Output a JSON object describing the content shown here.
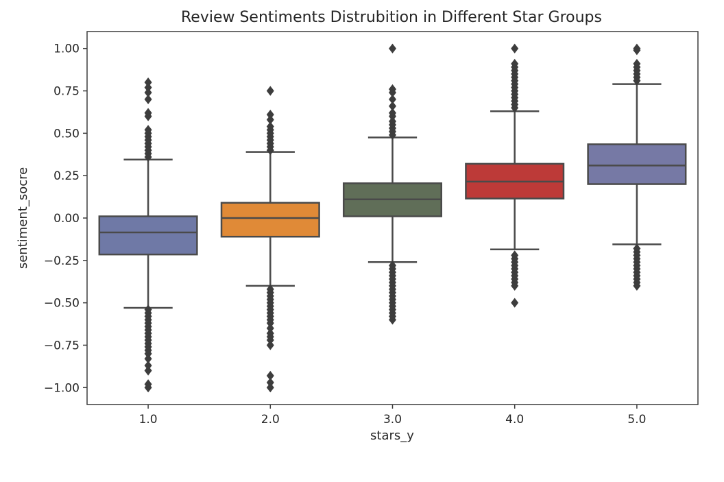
{
  "chart_data": {
    "type": "box",
    "title": "Review Sentiments Distrubition in Different Star Groups",
    "xlabel": "stars_y",
    "ylabel": "sentiment_socre",
    "categories": [
      "1.0",
      "2.0",
      "3.0",
      "4.0",
      "5.0"
    ],
    "ylim": [
      -1.1,
      1.1
    ],
    "yticks": [
      1.0,
      0.75,
      0.5,
      0.25,
      0.0,
      -0.25,
      -0.5,
      -0.75,
      -1.0
    ],
    "ytick_labels": [
      "1.00",
      "0.75",
      "0.50",
      "0.25",
      "0.00",
      "−0.25",
      "−0.50",
      "−0.75",
      "−1.00"
    ],
    "grid": false,
    "boxes": [
      {
        "category": "1.0",
        "color": "#6f79a6",
        "q1": -0.215,
        "median": -0.085,
        "q3": 0.01,
        "whisker_low": -0.53,
        "whisker_high": 0.345,
        "outliers": [
          0.8,
          0.77,
          0.74,
          0.7,
          0.62,
          0.6,
          0.52,
          0.5,
          0.48,
          0.46,
          0.44,
          0.42,
          0.4,
          0.38,
          0.36,
          -0.54,
          -0.56,
          -0.58,
          -0.6,
          -0.62,
          -0.64,
          -0.66,
          -0.68,
          -0.7,
          -0.72,
          -0.74,
          -0.76,
          -0.78,
          -0.8,
          -0.83,
          -0.87,
          -0.9,
          -0.98,
          -1.0
        ]
      },
      {
        "category": "2.0",
        "color": "#e08a37",
        "q1": -0.11,
        "median": 0.0,
        "q3": 0.09,
        "whisker_low": -0.4,
        "whisker_high": 0.39,
        "outliers": [
          0.75,
          0.61,
          0.58,
          0.54,
          0.52,
          0.5,
          0.48,
          0.46,
          0.44,
          0.42,
          0.4,
          -0.42,
          -0.44,
          -0.46,
          -0.48,
          -0.5,
          -0.52,
          -0.54,
          -0.56,
          -0.58,
          -0.6,
          -0.62,
          -0.65,
          -0.68,
          -0.7,
          -0.72,
          -0.75,
          -0.93,
          -0.97,
          -1.0
        ]
      },
      {
        "category": "3.0",
        "color": "#606e58",
        "q1": 0.01,
        "median": 0.11,
        "q3": 0.205,
        "whisker_low": -0.26,
        "whisker_high": 0.475,
        "outliers": [
          1.0,
          0.76,
          0.74,
          0.7,
          0.66,
          0.62,
          0.6,
          0.57,
          0.55,
          0.53,
          0.51,
          0.49,
          -0.28,
          -0.3,
          -0.32,
          -0.34,
          -0.36,
          -0.38,
          -0.4,
          -0.42,
          -0.44,
          -0.46,
          -0.48,
          -0.5,
          -0.52,
          -0.54,
          -0.56,
          -0.58,
          -0.6
        ]
      },
      {
        "category": "4.0",
        "color": "#bd3a38",
        "q1": 0.115,
        "median": 0.215,
        "q3": 0.32,
        "whisker_low": -0.185,
        "whisker_high": 0.63,
        "outliers": [
          1.0,
          0.91,
          0.89,
          0.87,
          0.85,
          0.83,
          0.81,
          0.79,
          0.77,
          0.75,
          0.73,
          0.71,
          0.69,
          0.67,
          0.65,
          -0.22,
          -0.24,
          -0.26,
          -0.28,
          -0.3,
          -0.32,
          -0.34,
          -0.36,
          -0.38,
          -0.4,
          -0.5
        ]
      },
      {
        "category": "5.0",
        "color": "#7679a5",
        "q1": 0.2,
        "median": 0.31,
        "q3": 0.435,
        "whisker_low": -0.155,
        "whisker_high": 0.79,
        "outliers": [
          1.0,
          0.99,
          0.91,
          0.89,
          0.87,
          0.85,
          0.83,
          0.81,
          -0.18,
          -0.2,
          -0.22,
          -0.24,
          -0.26,
          -0.28,
          -0.3,
          -0.32,
          -0.34,
          -0.36,
          -0.38,
          -0.4
        ]
      }
    ]
  }
}
